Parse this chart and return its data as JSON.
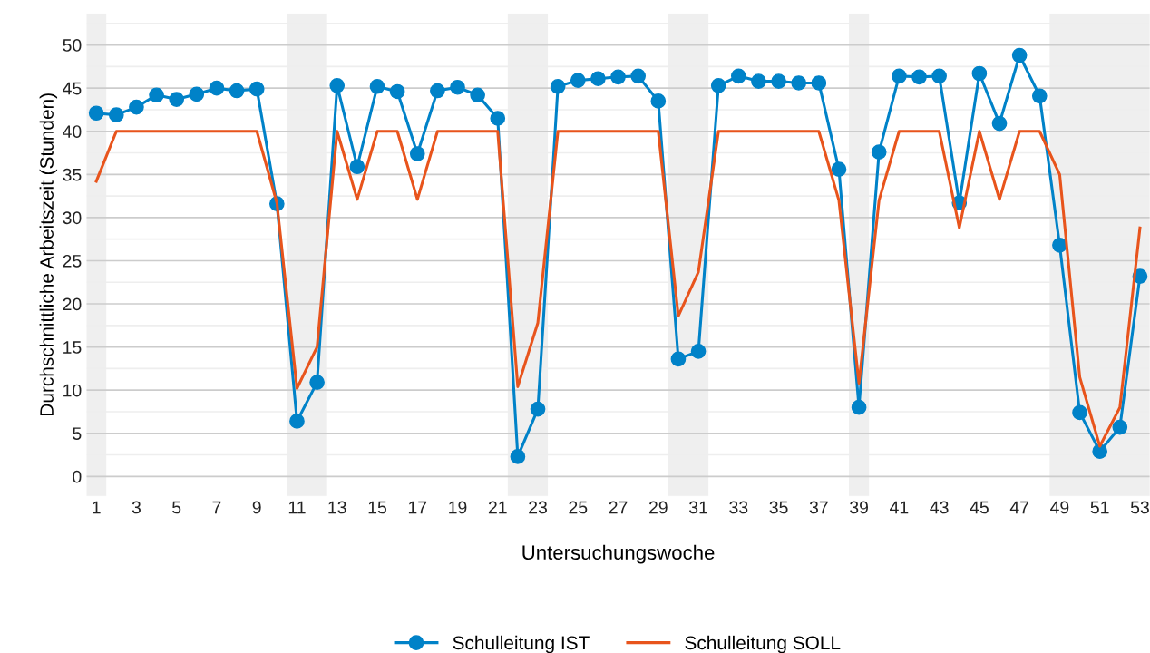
{
  "chart_data": {
    "type": "line",
    "xlabel": "Untersuchungswoche",
    "ylabel": "Durchschnittliche Arbeitszeit (Stunden)",
    "x": [
      1,
      2,
      3,
      4,
      5,
      6,
      7,
      8,
      9,
      10,
      11,
      12,
      13,
      14,
      15,
      16,
      17,
      18,
      19,
      20,
      21,
      22,
      23,
      24,
      25,
      26,
      27,
      28,
      29,
      30,
      31,
      32,
      33,
      34,
      35,
      36,
      37,
      38,
      39,
      40,
      41,
      42,
      43,
      44,
      45,
      46,
      47,
      48,
      49,
      50,
      51,
      52,
      53
    ],
    "series": [
      {
        "name": "Schulleitung IST",
        "color": "#0082c8",
        "marker": "circle",
        "values": [
          42.1,
          41.9,
          42.8,
          44.2,
          43.7,
          44.3,
          45.0,
          44.7,
          44.9,
          31.6,
          6.4,
          10.9,
          45.3,
          35.9,
          45.2,
          44.6,
          37.4,
          44.7,
          45.1,
          44.2,
          41.5,
          2.3,
          7.8,
          45.2,
          45.9,
          46.1,
          46.3,
          46.4,
          43.5,
          13.6,
          14.5,
          45.3,
          46.4,
          45.8,
          45.8,
          45.6,
          45.6,
          35.6,
          8.0,
          37.6,
          46.4,
          46.3,
          46.4,
          31.7,
          46.7,
          40.9,
          48.8,
          44.1,
          26.8,
          7.4,
          2.9,
          5.7,
          23.2
        ]
      },
      {
        "name": "Schulleitung SOLL",
        "color": "#e8541c",
        "marker": "none",
        "values": [
          34.2,
          40,
          40,
          40,
          40,
          40,
          40,
          40,
          40,
          31.7,
          10.2,
          15.0,
          40,
          32.1,
          40,
          40,
          32.1,
          40,
          40,
          40,
          40,
          10.4,
          17.8,
          40,
          40,
          40,
          40,
          40,
          40,
          18.6,
          23.7,
          40,
          40,
          40,
          40,
          40,
          40,
          32,
          10.8,
          32,
          40,
          40,
          40,
          28.8,
          40,
          32.1,
          40,
          40,
          35,
          11.5,
          3.5,
          8,
          28.8
        ]
      }
    ],
    "bands": [
      {
        "axis": "x",
        "from": 0.5,
        "to": 1.5,
        "color": "#efefef"
      },
      {
        "axis": "x",
        "from": 10.5,
        "to": 12.5,
        "color": "#efefef"
      },
      {
        "axis": "x",
        "from": 21.5,
        "to": 23.5,
        "color": "#efefef"
      },
      {
        "axis": "x",
        "from": 29.5,
        "to": 31.5,
        "color": "#efefef"
      },
      {
        "axis": "x",
        "from": 38.5,
        "to": 39.5,
        "color": "#efefef"
      },
      {
        "axis": "x",
        "from": 48.5,
        "to": 53.5,
        "color": "#efefef"
      }
    ],
    "xlim": [
      0.5,
      53.5
    ],
    "xticks": [
      1,
      3,
      5,
      7,
      9,
      11,
      13,
      15,
      17,
      19,
      21,
      23,
      25,
      27,
      29,
      31,
      33,
      35,
      37,
      39,
      41,
      43,
      45,
      47,
      49,
      51,
      53
    ],
    "ylim": [
      -2.3,
      53.7
    ],
    "yticks": [
      0,
      {
        "value": 2.5,
        "label": null
      },
      5,
      {
        "value": 7.5,
        "label": null
      },
      10,
      {
        "value": 12.5,
        "label": null
      },
      15,
      {
        "value": 17.5,
        "label": null
      },
      20,
      {
        "value": 22.5,
        "label": null
      },
      25,
      {
        "value": 27.5,
        "label": null
      },
      30,
      {
        "value": 32.5,
        "label": null
      },
      35,
      {
        "value": 37.5,
        "label": null
      },
      40,
      {
        "value": 42.5,
        "label": null
      },
      45,
      {
        "value": 47.5,
        "label": null
      },
      50,
      {
        "value": 52.5,
        "label": null
      }
    ],
    "grid": "y",
    "legend": "bottom",
    "line_style": "solid"
  }
}
